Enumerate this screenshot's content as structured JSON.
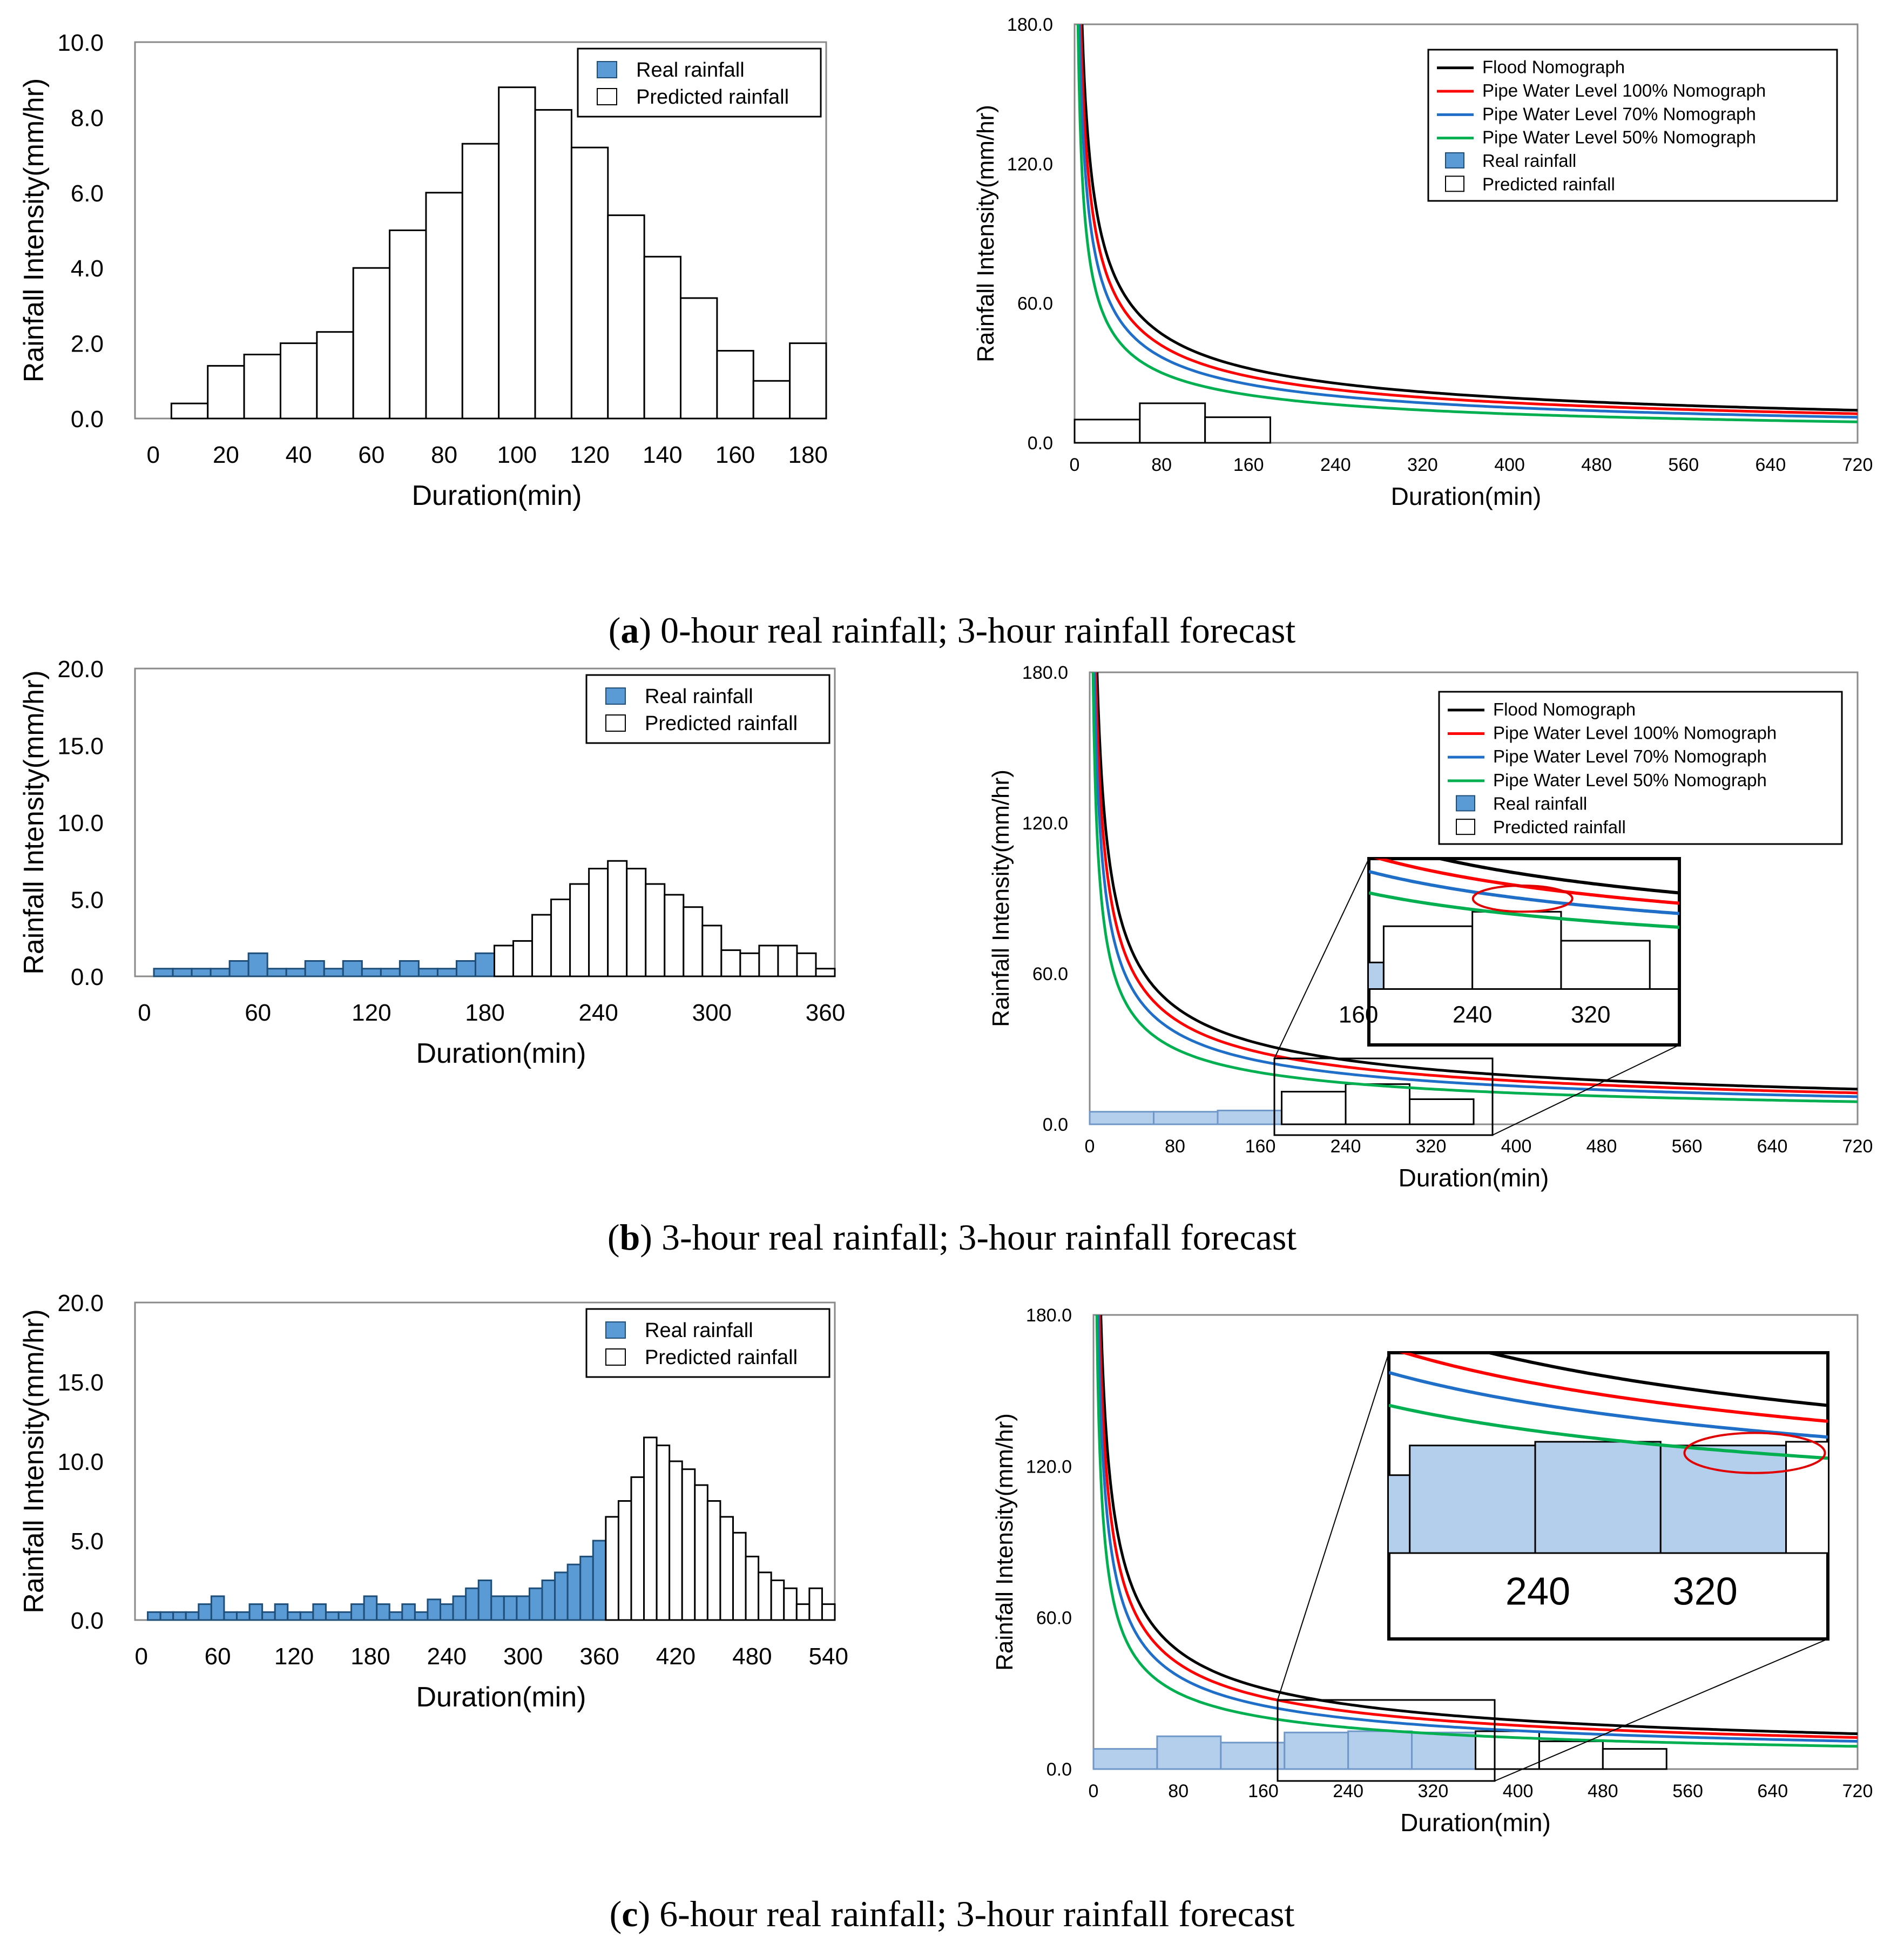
{
  "colors": {
    "real_fill": "#5b9bd5",
    "real_stroke": "#1f4e79",
    "real_fill_light": "#b4cfec",
    "pred_fill": "#ffffff",
    "bar_stroke": "#000000",
    "flood": "#000000",
    "pwl100": "#ff0000",
    "pwl70": "#1f6fc8",
    "pwl50": "#00b050",
    "highlight": "#e00000"
  },
  "captions": [
    {
      "letter": "a",
      "text": "0-hour real rainfall; 3-hour rainfall forecast"
    },
    {
      "letter": "b",
      "text": "3-hour real rainfall; 3-hour rainfall forecast"
    },
    {
      "letter": "c",
      "text": "6-hour real rainfall; 3-hour rainfall forecast"
    }
  ],
  "chart_data": [
    {
      "panel": "a-left",
      "type": "bar",
      "xlabel": "Duration(min)",
      "ylabel": "Rainfall Intensity(mm/hr)",
      "xlim": [
        -5,
        185
      ],
      "ylim": [
        0,
        10
      ],
      "xticks": [
        0,
        20,
        40,
        60,
        80,
        100,
        120,
        140,
        160,
        180
      ],
      "yticks": [
        0,
        2,
        4,
        6,
        8,
        10
      ],
      "ytick_labels": [
        "0.0",
        "2.0",
        "4.0",
        "6.0",
        "8.0",
        "10.0"
      ],
      "legend": [
        "Real rainfall",
        "Predicted rainfall"
      ],
      "legend_position": "top-right",
      "bin_width": 10,
      "first_bin_center": 10,
      "real_bins": 0,
      "values": [
        0.4,
        1.4,
        1.7,
        2.0,
        2.3,
        4.0,
        5.0,
        6.0,
        7.3,
        8.8,
        8.2,
        7.2,
        5.4,
        4.3,
        3.2,
        1.8,
        1.0,
        2.0
      ]
    },
    {
      "panel": "b-left",
      "type": "bar",
      "xlabel": "Duration(min)",
      "ylabel": "Rainfall Intensity(mm/hr)",
      "xlim": [
        -5,
        365
      ],
      "ylim": [
        0,
        20
      ],
      "xticks": [
        0,
        60,
        120,
        180,
        240,
        300,
        360
      ],
      "yticks": [
        0,
        5,
        10,
        15,
        20
      ],
      "ytick_labels": [
        "0.0",
        "5.0",
        "10.0",
        "15.0",
        "20.0"
      ],
      "legend": [
        "Real rainfall",
        "Predicted rainfall"
      ],
      "legend_position": "top-right",
      "bin_width": 10,
      "first_bin_center": 10,
      "real_bins": 18,
      "values": [
        0.5,
        0.5,
        0.5,
        0.5,
        1.0,
        1.5,
        0.5,
        0.5,
        1.0,
        0.5,
        1.0,
        0.5,
        0.5,
        1.0,
        0.5,
        0.5,
        1.0,
        1.5,
        2.0,
        2.3,
        4.0,
        5.0,
        6.0,
        7.0,
        7.5,
        7.0,
        6.0,
        5.3,
        4.5,
        3.3,
        1.7,
        1.5,
        2.0,
        2.0,
        1.5,
        0.5
      ]
    },
    {
      "panel": "c-left",
      "type": "bar",
      "xlabel": "Duration(min)",
      "ylabel": "Rainfall Intensity(mm/hr)",
      "xlim": [
        -5,
        545
      ],
      "ylim": [
        0,
        20
      ],
      "xticks": [
        0,
        60,
        120,
        180,
        240,
        300,
        360,
        420,
        480,
        540
      ],
      "yticks": [
        0,
        5,
        10,
        15,
        20
      ],
      "ytick_labels": [
        "0.0",
        "5.0",
        "10.0",
        "15.0",
        "20.0"
      ],
      "legend": [
        "Real rainfall",
        "Predicted rainfall"
      ],
      "legend_position": "top-right",
      "bin_width": 10,
      "first_bin_center": 10,
      "real_bins": 36,
      "values": [
        0.5,
        0.5,
        0.5,
        0.5,
        1.0,
        1.5,
        0.5,
        0.5,
        1.0,
        0.5,
        1.0,
        0.5,
        0.5,
        1.0,
        0.5,
        0.5,
        1.0,
        1.5,
        1.0,
        0.5,
        1.0,
        0.5,
        1.3,
        1.0,
        1.5,
        2.0,
        2.5,
        1.5,
        1.5,
        1.5,
        2.0,
        2.5,
        3.0,
        3.5,
        4.0,
        5.0,
        6.5,
        7.5,
        9.0,
        11.5,
        11.0,
        10.0,
        9.5,
        8.5,
        7.5,
        6.5,
        5.5,
        4.0,
        3.0,
        2.5,
        2.0,
        1.0,
        2.0,
        1.0
      ]
    },
    {
      "panel": "a-right",
      "type": "line",
      "xlabel": "Duration(min)",
      "ylabel": "Rainfall Intensity(mm/hr)",
      "xlim": [
        0,
        720
      ],
      "ylim": [
        0,
        180
      ],
      "xticks": [
        0,
        80,
        160,
        240,
        320,
        400,
        480,
        560,
        640,
        720
      ],
      "yticks": [
        0,
        60,
        120,
        180
      ],
      "ytick_labels": [
        "0.0",
        "60.0",
        "120.0",
        "180.0"
      ],
      "legend_position": "top-right",
      "series": [
        {
          "name": "Flood Nomograph",
          "key": "flood",
          "ref_value_at_720": 14
        },
        {
          "name": "Pipe Water Level 100% Nomograph",
          "key": "pwl100",
          "ref_value_at_720": 12.5
        },
        {
          "name": "Pipe Water Level   70% Nomograph",
          "key": "pwl70",
          "ref_value_at_720": 11
        },
        {
          "name": "Pipe Water Level   50% Nomograph",
          "key": "pwl50",
          "ref_value_at_720": 9
        }
      ],
      "bar_legend": [
        "Real rainfall",
        "Predicted rainfall"
      ],
      "bars": [
        {
          "start": 0,
          "end": 60,
          "value": 10,
          "kind": "pred"
        },
        {
          "start": 60,
          "end": 120,
          "value": 17,
          "kind": "pred"
        },
        {
          "start": 120,
          "end": 180,
          "value": 11,
          "kind": "pred"
        }
      ]
    },
    {
      "panel": "b-right",
      "type": "line",
      "xlabel": "Duration(min)",
      "ylabel": "Rainfall Intensity(mm/hr)",
      "xlim": [
        0,
        720
      ],
      "ylim": [
        0,
        180
      ],
      "xticks": [
        0,
        80,
        160,
        240,
        320,
        400,
        480,
        560,
        640,
        720
      ],
      "yticks": [
        0,
        60,
        120,
        180
      ],
      "ytick_labels": [
        "0.0",
        "60.0",
        "120.0",
        "180.0"
      ],
      "legend_position": "top-right",
      "series": [
        {
          "name": "Flood Nomograph",
          "key": "flood",
          "ref_value_at_720": 14
        },
        {
          "name": "Pipe Water Level 100% Nomograph",
          "key": "pwl100",
          "ref_value_at_720": 12.5
        },
        {
          "name": "Pipe Water Level   70% Nomograph",
          "key": "pwl70",
          "ref_value_at_720": 11
        },
        {
          "name": "Pipe Water Level   50% Nomograph",
          "key": "pwl50",
          "ref_value_at_720": 9
        }
      ],
      "bar_legend": [
        "Real rainfall",
        "Predicted rainfall"
      ],
      "bars": [
        {
          "start": 0,
          "end": 60,
          "value": 5,
          "kind": "real"
        },
        {
          "start": 60,
          "end": 120,
          "value": 5,
          "kind": "real"
        },
        {
          "start": 120,
          "end": 180,
          "value": 5.5,
          "kind": "real"
        },
        {
          "start": 180,
          "end": 240,
          "value": 13,
          "kind": "pred"
        },
        {
          "start": 240,
          "end": 300,
          "value": 16,
          "kind": "pred"
        },
        {
          "start": 300,
          "end": 360,
          "value": 10,
          "kind": "pred"
        }
      ],
      "zoom": {
        "x_range": [
          170,
          380
        ],
        "y_range": [
          0,
          27
        ],
        "tick_labels": [
          "160",
          "240",
          "320"
        ]
      }
    },
    {
      "panel": "c-right",
      "type": "line",
      "xlabel": "Duration(min)",
      "ylabel": "Rainfall Intensity(mm/hr)",
      "xlim": [
        0,
        720
      ],
      "ylim": [
        0,
        180
      ],
      "xticks": [
        0,
        80,
        160,
        240,
        320,
        400,
        480,
        560,
        640,
        720
      ],
      "yticks": [
        0,
        60,
        120,
        180
      ],
      "ytick_labels": [
        "0.0",
        "60.0",
        "120.0",
        "180.0"
      ],
      "series": [
        {
          "name": "Flood Nomograph",
          "key": "flood",
          "ref_value_at_720": 14
        },
        {
          "name": "Pipe Water Level 100% Nomograph",
          "key": "pwl100",
          "ref_value_at_720": 12.5
        },
        {
          "name": "Pipe Water Level   70% Nomograph",
          "key": "pwl70",
          "ref_value_at_720": 11
        },
        {
          "name": "Pipe Water Level   50% Nomograph",
          "key": "pwl50",
          "ref_value_at_720": 9
        }
      ],
      "bars": [
        {
          "start": 0,
          "end": 60,
          "value": 8,
          "kind": "real"
        },
        {
          "start": 60,
          "end": 120,
          "value": 13,
          "kind": "real"
        },
        {
          "start": 120,
          "end": 180,
          "value": 10.5,
          "kind": "real"
        },
        {
          "start": 180,
          "end": 240,
          "value": 14.5,
          "kind": "real"
        },
        {
          "start": 240,
          "end": 300,
          "value": 15,
          "kind": "real"
        },
        {
          "start": 300,
          "end": 360,
          "value": 14.5,
          "kind": "real"
        },
        {
          "start": 360,
          "end": 420,
          "value": 15,
          "kind": "pred"
        },
        {
          "start": 420,
          "end": 480,
          "value": 11,
          "kind": "pred"
        },
        {
          "start": 480,
          "end": 540,
          "value": 8,
          "kind": "pred"
        }
      ],
      "zoom": {
        "x_range": [
          170,
          380
        ],
        "y_range": [
          0,
          27
        ],
        "tick_labels": [
          "240",
          "320"
        ]
      }
    }
  ]
}
